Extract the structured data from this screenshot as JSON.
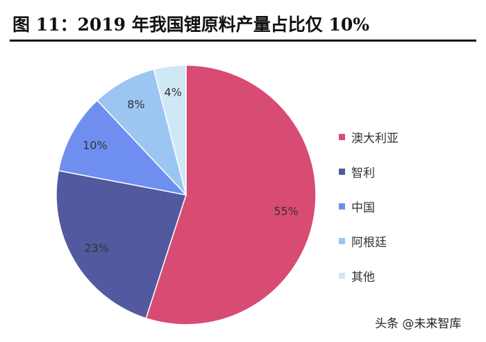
{
  "chart_data": {
    "type": "pie",
    "title": "图 11：2019 年我国锂原料产量占比仅 10%",
    "slices": [
      {
        "label": "澳大利亚",
        "value": 55,
        "display": "55%",
        "color": "#d84b72"
      },
      {
        "label": "智利",
        "value": 23,
        "display": "23%",
        "color": "#52599f"
      },
      {
        "label": "中国",
        "value": 10,
        "display": "10%",
        "color": "#6f8ff0"
      },
      {
        "label": "阿根廷",
        "value": 8,
        "display": "8%",
        "color": "#9bc6f1"
      },
      {
        "label": "其他",
        "value": 4,
        "display": "4%",
        "color": "#cfe8f6"
      }
    ],
    "legend_position": "right"
  },
  "watermark": "头条 @未来智库"
}
